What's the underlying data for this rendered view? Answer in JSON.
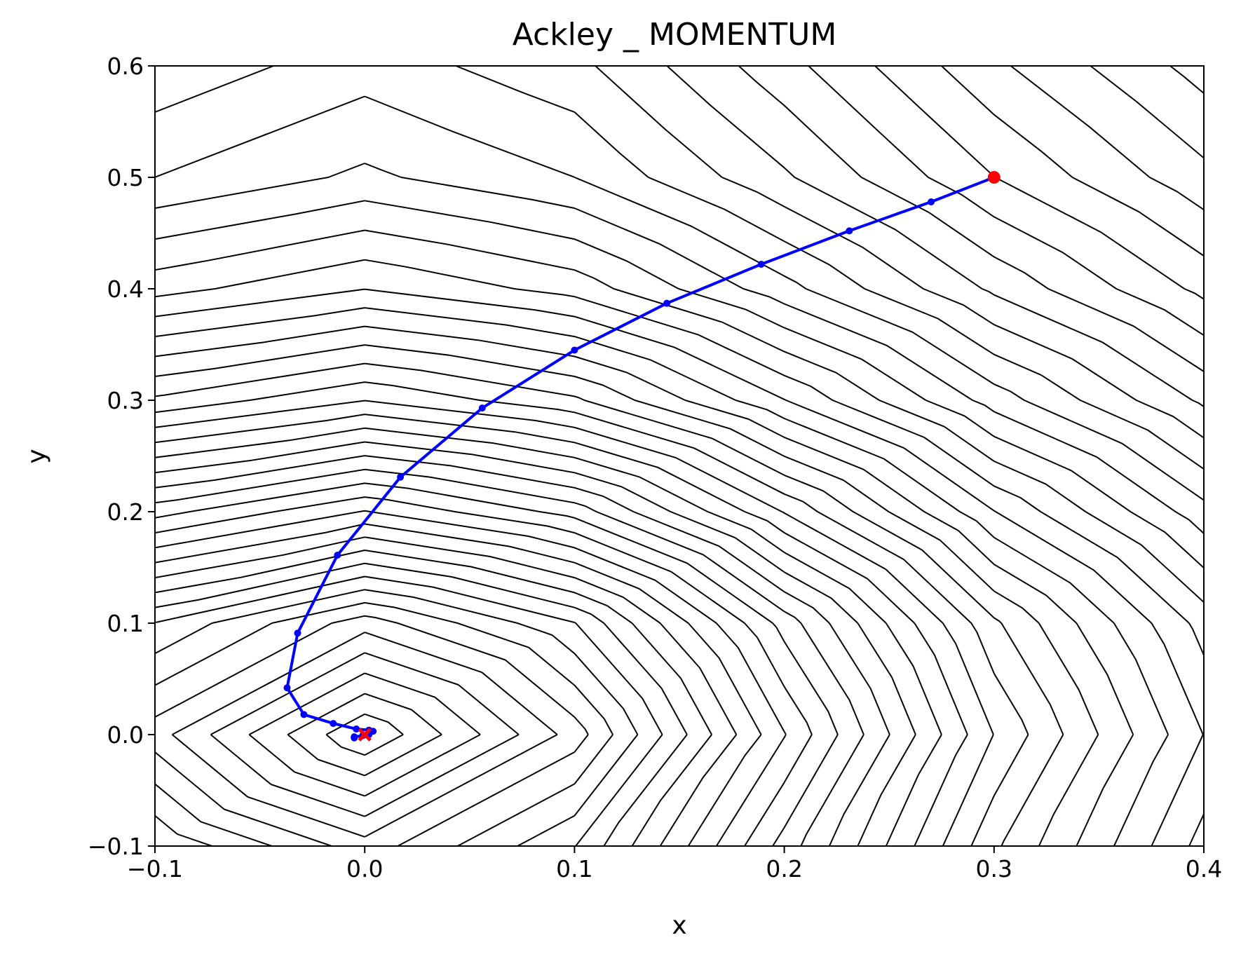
{
  "chart_data": {
    "type": "line",
    "title": "Ackley _ MOMENTUM",
    "xlabel": "x",
    "ylabel": "y",
    "xlim": [
      -0.1,
      0.4
    ],
    "ylim": [
      -0.1,
      0.6
    ],
    "xticks": [
      "−0.1",
      "0.0",
      "0.1",
      "0.2",
      "0.3",
      "0.4"
    ],
    "xtick_values": [
      -0.1,
      0.0,
      0.1,
      0.2,
      0.3,
      0.4
    ],
    "yticks": [
      "−0.1",
      "0.0",
      "0.1",
      "0.2",
      "0.3",
      "0.4",
      "0.5",
      "0.6"
    ],
    "ytick_values": [
      -0.1,
      0.0,
      0.1,
      0.2,
      0.3,
      0.4,
      0.5,
      0.6
    ],
    "grid": false,
    "function": "Ackley",
    "contour_color": "#000000",
    "highlight_contour_color": "#ff0000",
    "series": [
      {
        "color": "#0000ff",
        "x": [
          0.3,
          0.27,
          0.231,
          0.189,
          0.144,
          0.1,
          0.056,
          0.017,
          -0.013,
          -0.032,
          -0.037,
          -0.029,
          -0.015,
          -0.004,
          0.002,
          0.004,
          0.002,
          -0.001,
          -0.005,
          -0.005
        ],
        "y": [
          0.5,
          0.478,
          0.452,
          0.422,
          0.387,
          0.345,
          0.293,
          0.231,
          0.161,
          0.091,
          0.042,
          0.018,
          0.01,
          0.005,
          0.004,
          0.003,
          0.0,
          -0.001,
          -0.002,
          -0.003
        ]
      }
    ],
    "start_point": {
      "x": 0.3,
      "y": 0.5,
      "color": "#ff0000"
    },
    "optimum_marker": {
      "x": 0.0,
      "y": 0.0,
      "color": "#ff0000",
      "marker": "x"
    }
  }
}
